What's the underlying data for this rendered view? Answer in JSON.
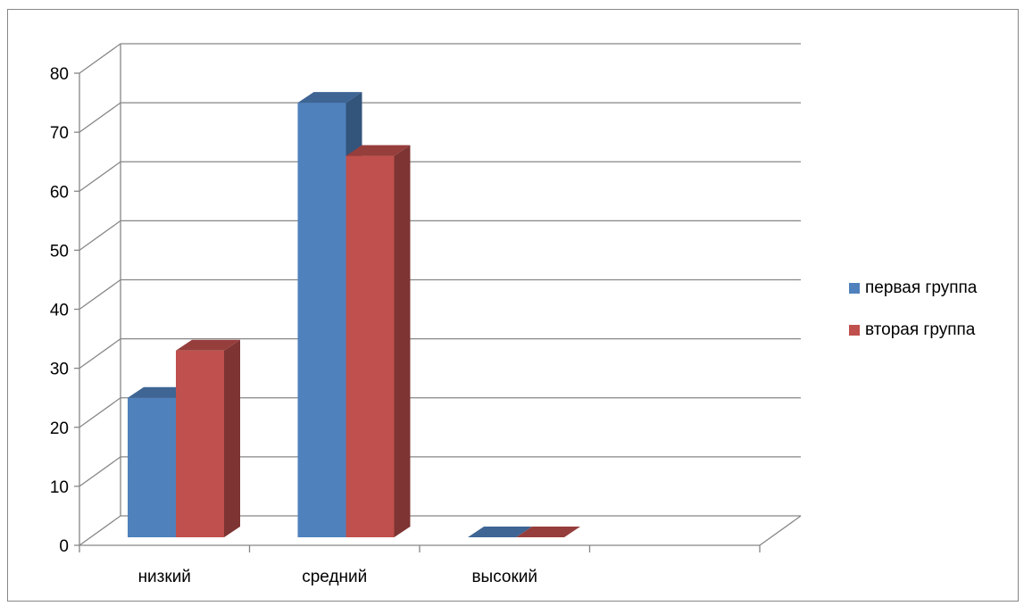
{
  "chart_data": {
    "type": "bar",
    "style": "3d-clustered-column",
    "categories": [
      "низкий",
      "средний",
      "высокий"
    ],
    "series": [
      {
        "name": "первая группа",
        "values": [
          25,
          75,
          0
        ],
        "color": "#4F81BD"
      },
      {
        "name": "вторая группа",
        "values": [
          33,
          66,
          0
        ],
        "color": "#C0504D"
      }
    ],
    "ylim": [
      0,
      80
    ],
    "yticks": [
      0,
      10,
      20,
      30,
      40,
      50,
      60,
      70,
      80
    ],
    "grid": true,
    "legend_position": "right",
    "colors": {
      "gridline": "#868686",
      "frame": "#868686",
      "text": "#000000"
    }
  }
}
